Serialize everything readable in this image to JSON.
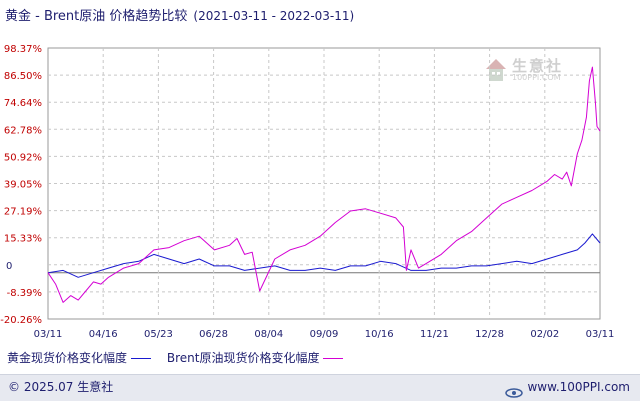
{
  "header": {
    "title": "黄金 - Brent原油 价格趋势比较",
    "date_range": "(2021-03-11 - 2022-03-11)"
  },
  "watermark": {
    "name": "生意社",
    "sub": "100PPI.COM"
  },
  "footer": {
    "copyright": "© 2025.07 生意社",
    "site": "www.100PPI.com"
  },
  "legend": {
    "gold_label": "黄金现货价格变化幅度",
    "brent_label": "Brent原油现货价格变化幅度"
  },
  "colors": {
    "gold": "#1a1ad0",
    "brent": "#d400d4",
    "axis_text_red": "#c00000",
    "axis_text_blue": "#1e1e6e",
    "grid": "#c8c8c8"
  },
  "chart_data": {
    "type": "line",
    "title": "黄金 - Brent原油 价格趋势比较",
    "xlabel": "",
    "ylabel": "",
    "y_ticks": [
      "98.37%",
      "86.50%",
      "74.64%",
      "62.78%",
      "50.92%",
      "39.05%",
      "27.19%",
      "15.33%",
      "0",
      "-8.39%",
      "-20.26%"
    ],
    "x_ticks": [
      "03/11",
      "04/16",
      "05/23",
      "06/28",
      "08/04",
      "09/09",
      "10/16",
      "11/21",
      "12/28",
      "02/02",
      "03/11"
    ],
    "ylim": [
      -20.26,
      98.37
    ],
    "x_unit": "days from 2021-03-11",
    "xlim": [
      0,
      365
    ],
    "grid": true,
    "legend_position": "bottom",
    "series": [
      {
        "name": "黄金现货价格变化幅度",
        "x": [
          0,
          10,
          20,
          30,
          40,
          50,
          60,
          70,
          80,
          90,
          100,
          110,
          120,
          130,
          140,
          150,
          160,
          170,
          180,
          190,
          200,
          210,
          220,
          230,
          240,
          250,
          260,
          270,
          280,
          290,
          300,
          310,
          320,
          330,
          340,
          350,
          355,
          360,
          365
        ],
        "y": [
          0,
          1,
          -2,
          0,
          2,
          4,
          5,
          8,
          6,
          4,
          6,
          3,
          3,
          1,
          2,
          3,
          1,
          1,
          2,
          1,
          3,
          3,
          5,
          4,
          1,
          1,
          2,
          2,
          3,
          3,
          4,
          5,
          4,
          6,
          8,
          10,
          13,
          17,
          13
        ]
      },
      {
        "name": "Brent原油现货价格变化幅度",
        "x": [
          0,
          5,
          10,
          15,
          20,
          25,
          30,
          35,
          40,
          50,
          60,
          70,
          80,
          90,
          100,
          110,
          120,
          125,
          130,
          135,
          140,
          150,
          160,
          170,
          180,
          190,
          200,
          210,
          220,
          230,
          235,
          237,
          240,
          245,
          250,
          260,
          270,
          280,
          290,
          300,
          310,
          320,
          330,
          335,
          340,
          343,
          346,
          350,
          353,
          356,
          358,
          360,
          362,
          363,
          365
        ],
        "y": [
          0,
          -5,
          -13,
          -10,
          -12,
          -8,
          -4,
          -5,
          -2,
          2,
          4,
          10,
          11,
          14,
          16,
          10,
          12,
          15,
          8,
          9,
          -8,
          6,
          10,
          12,
          16,
          22,
          27,
          28,
          26,
          24,
          20,
          1,
          10,
          2,
          4,
          8,
          14,
          18,
          24,
          30,
          33,
          36,
          40,
          43,
          41,
          44,
          38,
          52,
          58,
          68,
          84,
          90,
          74,
          64,
          62
        ]
      }
    ]
  }
}
